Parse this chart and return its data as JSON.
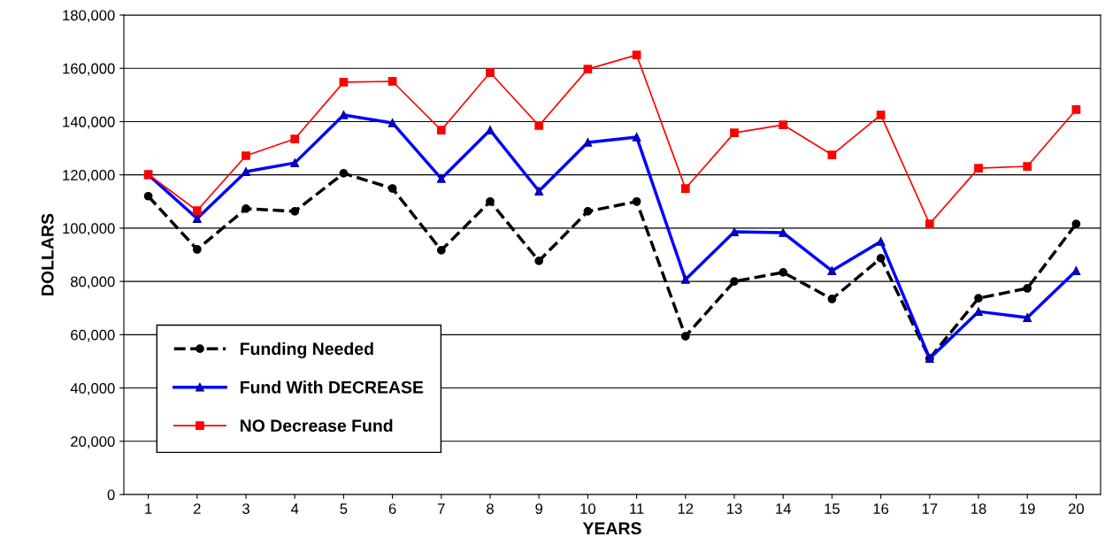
{
  "chart_data": {
    "type": "line",
    "xlabel": "YEARS",
    "ylabel": "DOLLARS",
    "categories": [
      "1",
      "2",
      "3",
      "4",
      "5",
      "6",
      "7",
      "8",
      "9",
      "10",
      "11",
      "12",
      "13",
      "14",
      "15",
      "16",
      "17",
      "18",
      "19",
      "20"
    ],
    "series": [
      {
        "name": "Funding Needed",
        "color": "#000000",
        "marker": "circle",
        "line_style": "dashed",
        "values": [
          112000,
          92000,
          107300,
          106300,
          120600,
          114900,
          91700,
          110000,
          87700,
          106300,
          110000,
          59400,
          80000,
          83400,
          73400,
          88700,
          51100,
          73700,
          77400,
          101600
        ]
      },
      {
        "name": "Fund With DECREASE",
        "color": "#0000ff",
        "marker": "triangle",
        "line_style": "solid",
        "values": [
          120000,
          103600,
          121200,
          124500,
          142500,
          139500,
          118600,
          136800,
          113900,
          132200,
          134200,
          80700,
          98600,
          98300,
          84000,
          95000,
          51100,
          68700,
          66400,
          84000
        ]
      },
      {
        "name": "NO Decrease Fund",
        "color": "#ff0000",
        "marker": "square",
        "line_style": "solid",
        "values": [
          120200,
          106600,
          127200,
          133500,
          154800,
          155100,
          136800,
          158400,
          138500,
          159700,
          165000,
          114900,
          135800,
          138800,
          127500,
          142500,
          101600,
          122500,
          123200,
          144500
        ]
      }
    ],
    "ylim": [
      0,
      180000
    ],
    "yticks": [
      0,
      {
        "value": 20000,
        "label": "20,000"
      },
      {
        "value": 40000,
        "label": "40,000"
      },
      {
        "value": 60000,
        "label": "60,000"
      },
      {
        "value": 80000,
        "label": "80,000"
      },
      {
        "value": 100000,
        "label": "100,000"
      },
      {
        "value": 120000,
        "label": "120,000"
      },
      {
        "value": 140000,
        "label": "140,000"
      },
      {
        "value": 160000,
        "label": "160,000"
      },
      {
        "value": 180000,
        "label": "180,000"
      }
    ],
    "grid": "y",
    "legend": "bottom left"
  }
}
